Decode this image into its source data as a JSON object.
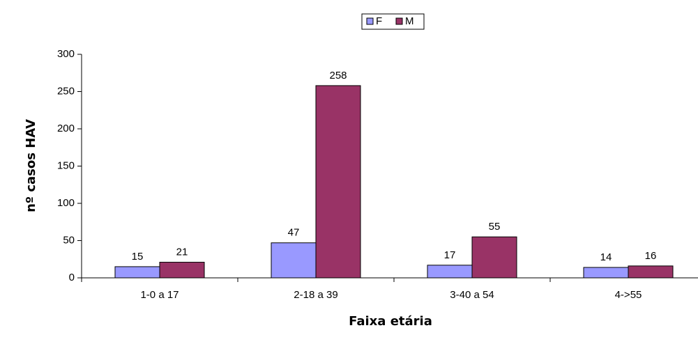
{
  "chart_data": {
    "type": "bar",
    "xlabel": "Faixa etária",
    "ylabel": "nº casos HAV",
    "categories": [
      "1-0 a 17",
      "2-18 a 39",
      "3-40 a 54",
      "4->55"
    ],
    "series": [
      {
        "name": "F",
        "color": "#9999ff",
        "values": [
          15,
          47,
          17,
          14
        ]
      },
      {
        "name": "M",
        "color": "#993366",
        "values": [
          21,
          258,
          55,
          16
        ]
      }
    ],
    "ylim": [
      0,
      300
    ],
    "yticks": [
      0,
      50,
      100,
      150,
      200,
      250,
      300
    ],
    "legend": "top"
  }
}
